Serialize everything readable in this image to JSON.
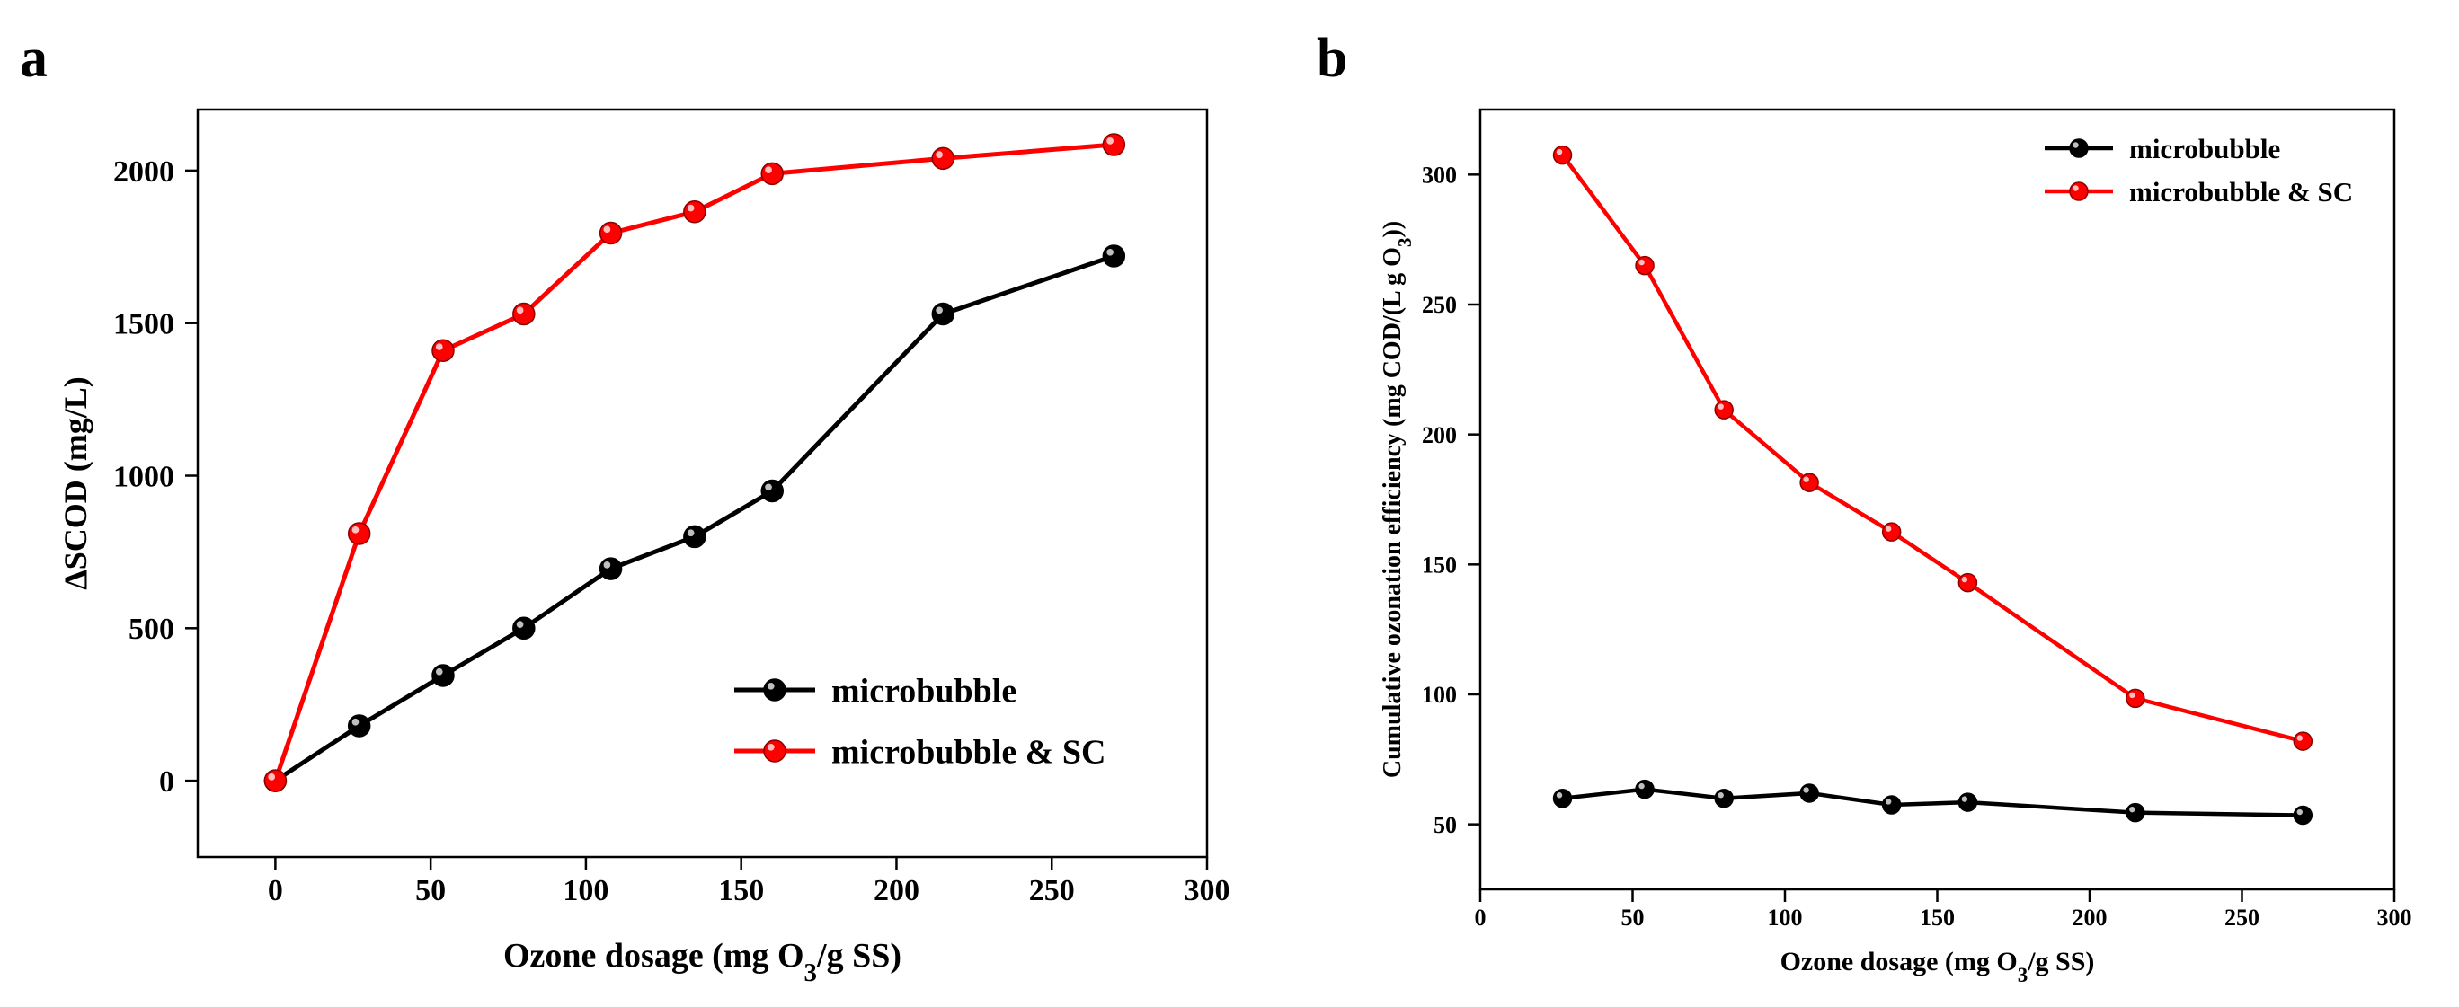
{
  "panels": {
    "a": {
      "label": "a"
    },
    "b": {
      "label": "b"
    }
  },
  "colors": {
    "microbubble": "#000000",
    "microbubble_sc": "#ff0000"
  },
  "chart_data": [
    {
      "id": "a",
      "type": "line",
      "title": "",
      "xlabel_pre": "Ozone dosage (mg O",
      "xlabel_sub": "3",
      "xlabel_post": "/g SS)",
      "ylabel": "ΔSCOD (mg/L)",
      "xlim": [
        -25,
        300
      ],
      "ylim": [
        -250,
        2200
      ],
      "xticks": [
        0,
        50,
        100,
        150,
        200,
        250,
        300
      ],
      "yticks": [
        0,
        500,
        1000,
        1500,
        2000
      ],
      "legend_position": "bottom-right",
      "series": [
        {
          "name": "microbubble",
          "color": "#000000",
          "x": [
            0,
            27,
            54,
            80,
            108,
            135,
            160,
            215,
            270
          ],
          "y": [
            0,
            180,
            345,
            500,
            695,
            800,
            950,
            1530,
            1720
          ]
        },
        {
          "name": "microbubble & SC",
          "color": "#ff0000",
          "x": [
            0,
            27,
            54,
            80,
            108,
            135,
            160,
            215,
            270
          ],
          "y": [
            0,
            810,
            1410,
            1530,
            1795,
            1865,
            1990,
            2040,
            2085
          ]
        }
      ]
    },
    {
      "id": "b",
      "type": "line",
      "title": "",
      "xlabel_pre": "Ozone dosage (mg O",
      "xlabel_sub": "3",
      "xlabel_post": "/g SS)",
      "ylabel_pre": "Cumulative ozonation efficiency (mg COD/(L g O",
      "ylabel_sub": "3",
      "ylabel_post": "))",
      "xlim": [
        0,
        300
      ],
      "ylim": [
        25,
        325
      ],
      "xticks": [
        0,
        50,
        100,
        150,
        200,
        250,
        300
      ],
      "yticks": [
        50,
        100,
        150,
        200,
        250,
        300
      ],
      "legend_position": "top-right",
      "series": [
        {
          "name": "microbubble",
          "color": "#000000",
          "x": [
            27,
            54,
            80,
            108,
            135,
            160,
            215,
            270
          ],
          "y": [
            60,
            63.5,
            60,
            62,
            57.5,
            58.5,
            54.5,
            53.5
          ]
        },
        {
          "name": "microbubble & SC",
          "color": "#ff0000",
          "x": [
            27,
            54,
            80,
            108,
            135,
            160,
            215,
            270
          ],
          "y": [
            307.5,
            265,
            209.5,
            181.5,
            162.5,
            143,
            98.5,
            82
          ]
        }
      ]
    }
  ]
}
